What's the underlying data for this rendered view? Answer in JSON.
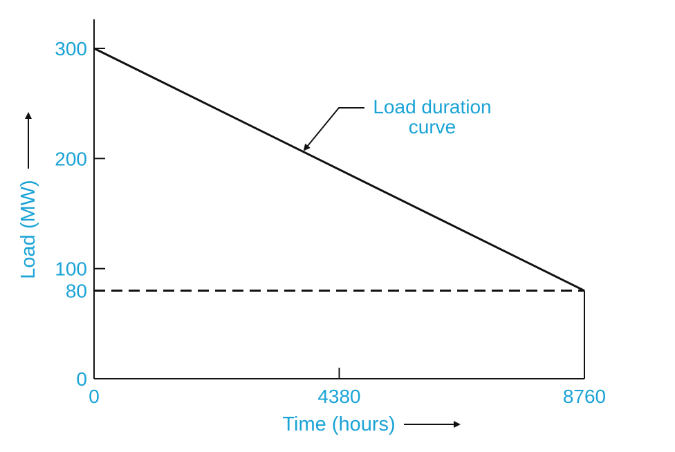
{
  "chart_data": {
    "type": "line",
    "title": "",
    "xlabel": "Time (hours)",
    "ylabel": "Load (MW)",
    "xlim": [
      0,
      8760
    ],
    "ylim": [
      0,
      300
    ],
    "x_ticks": [
      0,
      4380,
      8760
    ],
    "y_ticks": [
      0,
      80,
      100,
      200,
      300
    ],
    "grid": false,
    "series": [
      {
        "name": "Load duration curve",
        "style": "solid",
        "x": [
          0,
          8760
        ],
        "y": [
          300,
          80
        ]
      }
    ],
    "reference_lines": [
      {
        "style": "dashed",
        "x": [
          0,
          8760
        ],
        "y": [
          80,
          80
        ]
      }
    ],
    "annotations": [
      {
        "lines": [
          "Load duration",
          "curve"
        ],
        "points_to": "Load duration curve"
      }
    ],
    "colors": {
      "text": "#1aa3d6",
      "lines": "#111111"
    }
  }
}
